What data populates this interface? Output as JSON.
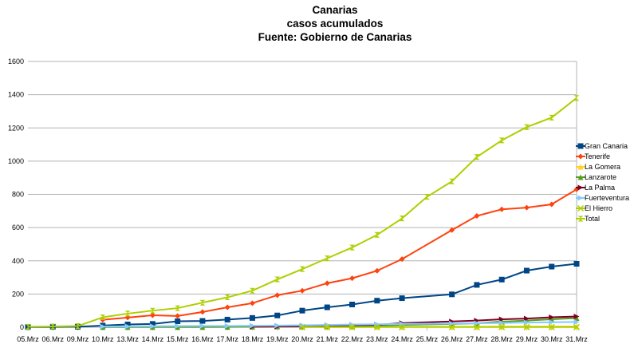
{
  "chart_data": {
    "type": "line",
    "title": [
      "Canarias",
      "casos acumulados",
      "Fuente: Gobierno de Canarias"
    ],
    "xlabel": "",
    "ylabel": "",
    "ylim": [
      0,
      1600
    ],
    "yticks": [
      0,
      200,
      400,
      600,
      800,
      1000,
      1200,
      1400,
      1600
    ],
    "grid": true,
    "legend_position": "right",
    "categories": [
      "05.Mrz",
      "06.Mrz",
      "09.Mrz",
      "10.Mrz",
      "13.Mrz",
      "14.Mrz",
      "15.Mrz",
      "16.Mrz",
      "17.Mrz",
      "18.Mrz",
      "19.Mrz",
      "20.Mrz",
      "21.Mrz",
      "22.Mrz",
      "23.Mrz",
      "24.Mrz",
      "25.Mrz",
      "26.Mrz",
      "27.Mrz",
      "28.Mrz",
      "29.Mrz",
      "30.Mrz",
      "31.Mrz"
    ],
    "series": [
      {
        "name": "Gran Canaria",
        "color": "#004586",
        "marker": "square",
        "values": [
          1,
          2,
          3,
          10,
          17,
          20,
          36,
          38,
          46,
          56,
          71,
          100,
          120,
          137,
          160,
          175,
          null,
          198,
          255,
          287,
          341,
          365,
          382
        ]
      },
      {
        "name": "Tenerife",
        "color": "#ff420e",
        "marker": "diamond",
        "values": [
          null,
          null,
          null,
          45,
          58,
          72,
          68,
          92,
          120,
          145,
          193,
          220,
          265,
          295,
          340,
          410,
          null,
          585,
          670,
          710,
          720,
          740,
          830
        ]
      },
      {
        "name": "La Gomera",
        "color": "#ffd320",
        "marker": "triangle",
        "values": [
          null,
          null,
          null,
          null,
          null,
          null,
          null,
          null,
          null,
          null,
          null,
          2,
          2,
          2,
          3,
          3,
          null,
          3,
          3,
          4,
          4,
          4,
          5
        ]
      },
      {
        "name": "Lanzarote",
        "color": "#579d1c",
        "marker": "triangle",
        "values": [
          null,
          null,
          null,
          1,
          1,
          1,
          1,
          1,
          2,
          3,
          4,
          5,
          6,
          8,
          10,
          14,
          null,
          20,
          24,
          34,
          40,
          48,
          55
        ]
      },
      {
        "name": "La Palma",
        "color": "#7e0021",
        "marker": "arrow",
        "values": [
          null,
          null,
          null,
          null,
          null,
          null,
          null,
          null,
          null,
          3,
          4,
          5,
          8,
          12,
          14,
          25,
          null,
          35,
          40,
          48,
          52,
          60,
          65
        ]
      },
      {
        "name": "Fuerteventura",
        "color": "#83caff",
        "marker": "arrow",
        "values": [
          null,
          null,
          null,
          4,
          5,
          6,
          7,
          8,
          8,
          9,
          10,
          12,
          14,
          16,
          18,
          20,
          null,
          22,
          24,
          26,
          28,
          30,
          32
        ]
      },
      {
        "name": "El Hierro",
        "color": "#aecf00",
        "marker": "x",
        "values": [
          null,
          null,
          null,
          null,
          null,
          null,
          null,
          null,
          null,
          null,
          null,
          1,
          1,
          1,
          1,
          1,
          null,
          1,
          1,
          1,
          1,
          1,
          1
        ]
      },
      {
        "name": "Total",
        "color": "#aecf00",
        "marker": "hourglass",
        "values": [
          3,
          5,
          7,
          60,
          82,
          100,
          115,
          148,
          180,
          220,
          288,
          350,
          415,
          480,
          556,
          655,
          785,
          878,
          1025,
          1125,
          1205,
          1262,
          1380
        ]
      }
    ]
  }
}
